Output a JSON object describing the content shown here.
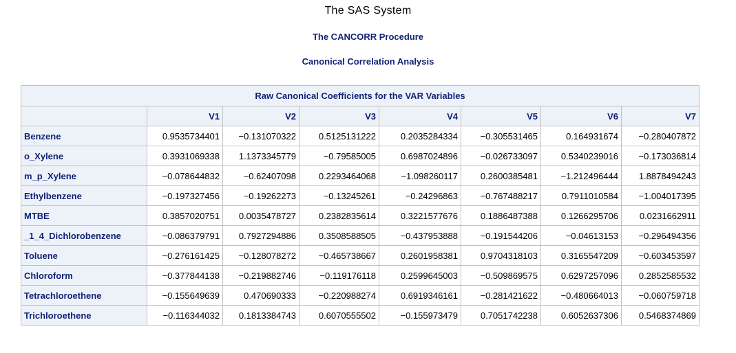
{
  "titles": {
    "system": "The SAS System",
    "procedure": "The CANCORR Procedure",
    "analysis": "Canonical Correlation Analysis"
  },
  "table": {
    "caption": "Raw Canonical Coefficients for the VAR Variables",
    "columns": [
      "V1",
      "V2",
      "V3",
      "V4",
      "V5",
      "V6",
      "V7"
    ],
    "rows": [
      {
        "label": "Benzene",
        "values": [
          "0.9535734401",
          "−0.131070322",
          "0.5125131222",
          "0.2035284334",
          "−0.305531465",
          "0.164931674",
          "−0.280407872"
        ]
      },
      {
        "label": "o_Xylene",
        "values": [
          "0.3931069338",
          "1.1373345779",
          "−0.79585005",
          "0.6987024896",
          "−0.026733097",
          "0.5340239016",
          "−0.173036814"
        ]
      },
      {
        "label": "m_p_Xylene",
        "values": [
          "−0.078644832",
          "−0.62407098",
          "0.2293464068",
          "−1.098260117",
          "0.2600385481",
          "−1.212496444",
          "1.8878494243"
        ]
      },
      {
        "label": "Ethylbenzene",
        "values": [
          "−0.197327456",
          "−0.19262273",
          "−0.13245261",
          "−0.24296863",
          "−0.767488217",
          "0.7911010584",
          "−1.004017395"
        ]
      },
      {
        "label": "MTBE",
        "values": [
          "0.3857020751",
          "0.0035478727",
          "0.2382835614",
          "0.3221577676",
          "0.1886487388",
          "0.1266295706",
          "0.0231662911"
        ]
      },
      {
        "label": "_1_4_Dichlorobenzene",
        "values": [
          "−0.086379791",
          "0.7927294886",
          "0.3508588505",
          "−0.437953888",
          "−0.191544206",
          "−0.04613153",
          "−0.296494356"
        ]
      },
      {
        "label": "Toluene",
        "values": [
          "−0.276161425",
          "−0.128078272",
          "−0.465738667",
          "0.2601958381",
          "0.9704318103",
          "0.3165547209",
          "−0.603453597"
        ]
      },
      {
        "label": "Chloroform",
        "values": [
          "−0.377844138",
          "−0.219882746",
          "−0.119176118",
          "0.2599645003",
          "−0.509869575",
          "0.6297257096",
          "0.2852585532"
        ]
      },
      {
        "label": "Tetrachloroethene",
        "values": [
          "−0.155649639",
          "0.470690333",
          "−0.220988274",
          "0.6919346161",
          "−0.281421622",
          "−0.480664013",
          "−0.060759718"
        ]
      },
      {
        "label": "Trichloroethene",
        "values": [
          "−0.116344032",
          "0.1813384743",
          "0.6070555502",
          "−0.155973479",
          "0.7051742238",
          "0.6052637306",
          "0.5468374869"
        ]
      }
    ]
  }
}
